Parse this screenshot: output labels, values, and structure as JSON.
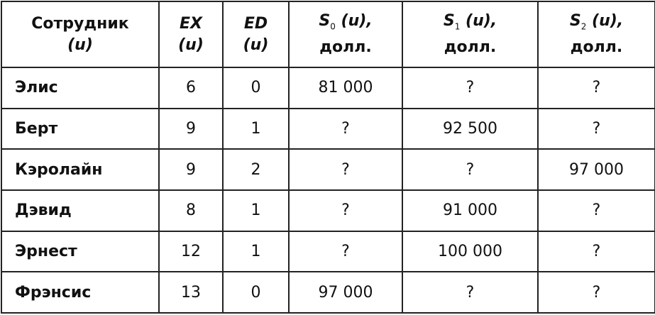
{
  "headers": {
    "employee": {
      "label": "Сотрудник",
      "var": "(u)"
    },
    "ex": {
      "label": "EX",
      "var": "(u)"
    },
    "ed": {
      "label": "ED",
      "var": "(u)"
    },
    "s0": {
      "label": "S",
      "sub": "0",
      "var": "(u),",
      "unit": "долл."
    },
    "s1": {
      "label": "S",
      "sub": "1",
      "var": "(u),",
      "unit": "долл."
    },
    "s2": {
      "label": "S",
      "sub": "2",
      "var": "(u),",
      "unit": "долл."
    }
  },
  "rows": [
    {
      "name": "Элис",
      "ex": "6",
      "ed": "0",
      "s0": "81 000",
      "s1": "?",
      "s2": "?"
    },
    {
      "name": "Берт",
      "ex": "9",
      "ed": "1",
      "s0": "?",
      "s1": "92 500",
      "s2": "?"
    },
    {
      "name": "Кэролайн",
      "ex": "9",
      "ed": "2",
      "s0": "?",
      "s1": "?",
      "s2": "97 000"
    },
    {
      "name": "Дэвид",
      "ex": "8",
      "ed": "1",
      "s0": "?",
      "s1": "91 000",
      "s2": "?"
    },
    {
      "name": "Эрнест",
      "ex": "12",
      "ed": "1",
      "s0": "?",
      "s1": "100 000",
      "s2": "?"
    },
    {
      "name": "Фрэнсис",
      "ex": "13",
      "ed": "0",
      "s0": "97 000",
      "s1": "?",
      "s2": "?"
    }
  ]
}
